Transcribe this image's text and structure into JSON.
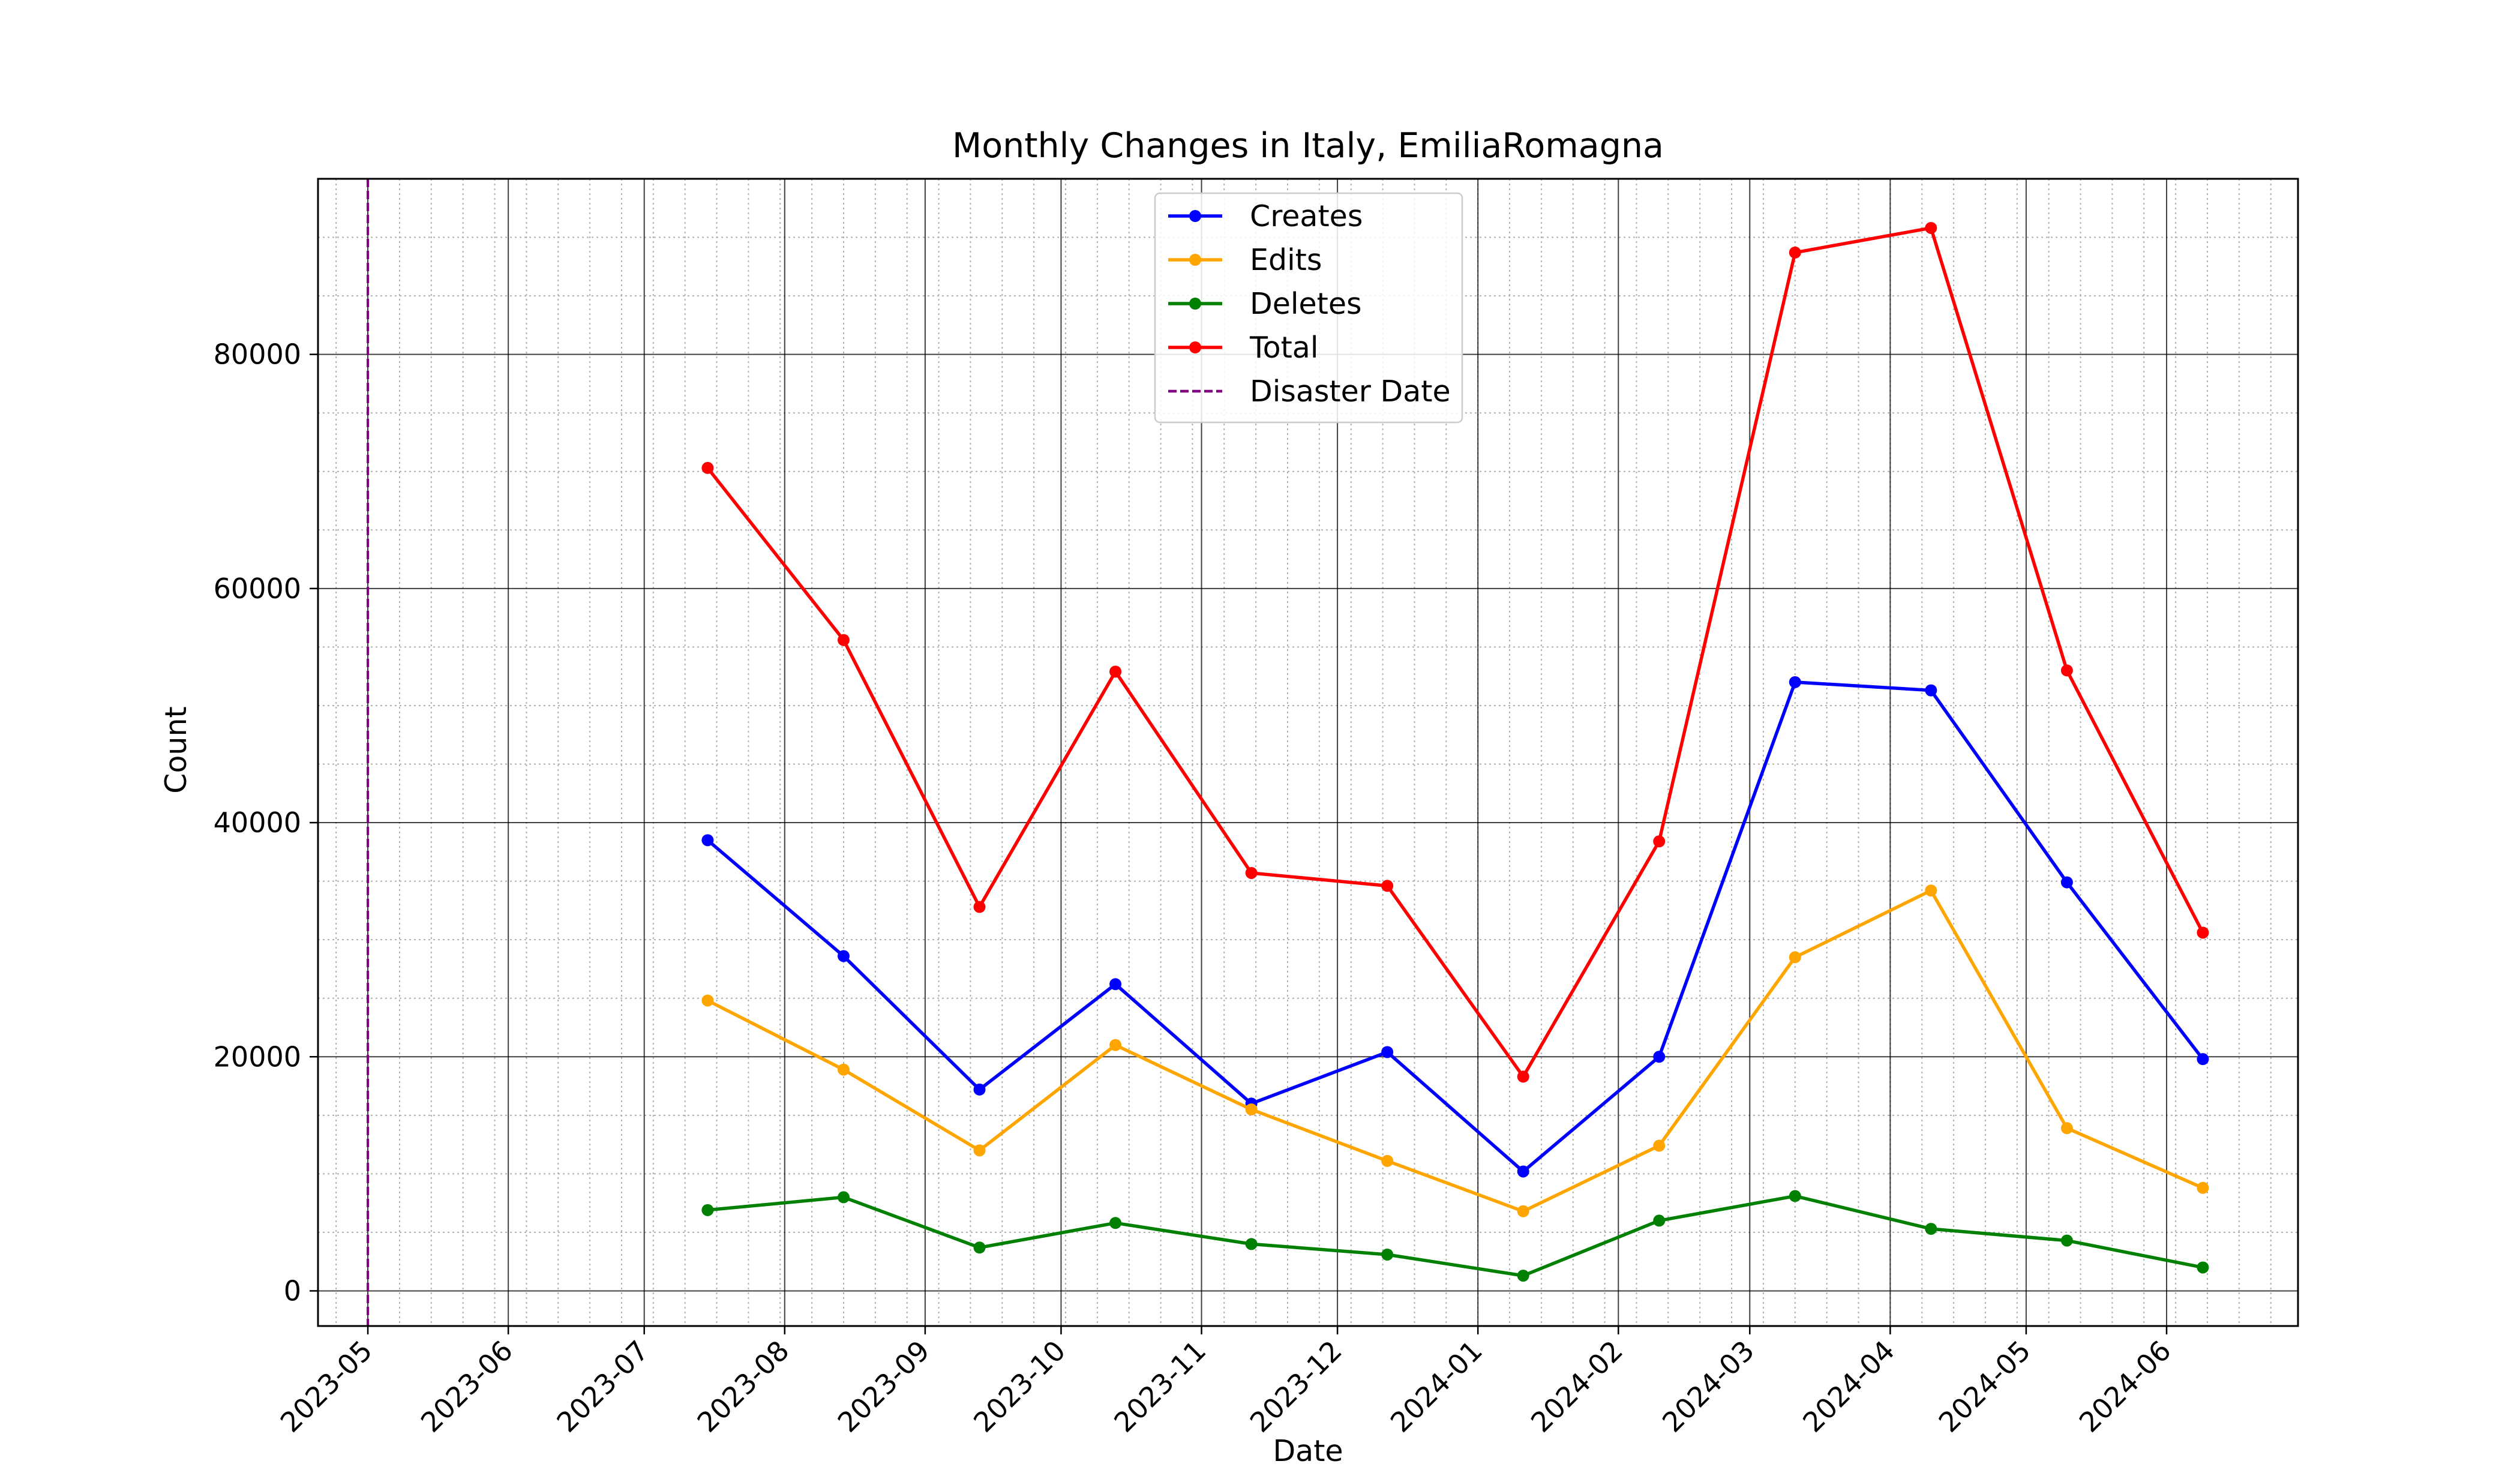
{
  "chart_data": {
    "type": "line",
    "title": "Monthly Changes in Italy, EmiliaRomagna",
    "xlabel": "Date",
    "ylabel": "Count",
    "x_axis_type": "date",
    "xlim": [
      "2023-04-20",
      "2024-06-30"
    ],
    "ylim": [
      -3000,
      95000
    ],
    "x_tick_labels": [
      "2023-05",
      "2023-06",
      "2023-07",
      "2023-08",
      "2023-09",
      "2023-10",
      "2023-11",
      "2023-12",
      "2024-01",
      "2024-02",
      "2024-03",
      "2024-04",
      "2024-05",
      "2024-06"
    ],
    "y_ticks": [
      0,
      20000,
      40000,
      60000,
      80000
    ],
    "y_tick_labels": [
      "0",
      "20000",
      "40000",
      "60000",
      "80000"
    ],
    "grid": "major and minor",
    "legend_position": "top-center",
    "x": [
      "2023-07-15",
      "2023-08-14",
      "2023-09-13",
      "2023-10-13",
      "2023-11-12",
      "2023-12-12",
      "2024-01-11",
      "2024-02-10",
      "2024-03-11",
      "2024-04-10",
      "2024-05-10",
      "2024-06-09"
    ],
    "series": [
      {
        "name": "Creates",
        "color": "#0000ff",
        "values": [
          38500,
          28600,
          17200,
          26200,
          16000,
          20400,
          10200,
          20000,
          52000,
          51300,
          34900,
          19800
        ]
      },
      {
        "name": "Edits",
        "color": "#ffa500",
        "values": [
          24800,
          18900,
          12000,
          21000,
          15500,
          11100,
          6800,
          12400,
          28500,
          34200,
          13900,
          8800
        ]
      },
      {
        "name": "Deletes",
        "color": "#008000",
        "values": [
          6900,
          8000,
          3700,
          5800,
          4000,
          3100,
          1300,
          6000,
          8100,
          5300,
          4300,
          2000
        ]
      },
      {
        "name": "Total",
        "color": "#ff0000",
        "values": [
          70300,
          55600,
          32800,
          52900,
          35700,
          34600,
          18300,
          38400,
          88700,
          90800,
          53000,
          30600
        ]
      }
    ],
    "disaster_date": {
      "label": "Disaster Date",
      "date": "2023-05-01",
      "color": "#800080"
    }
  }
}
